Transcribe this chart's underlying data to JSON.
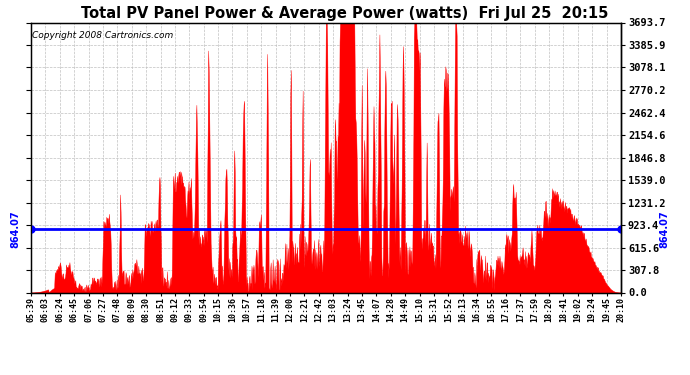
{
  "title": "Total PV Panel Power & Average Power (watts)  Fri Jul 25  20:15",
  "copyright_text": "Copyright 2008 Cartronics.com",
  "y_max": 3693.7,
  "y_min": 0.0,
  "y_ticks": [
    0.0,
    307.8,
    615.6,
    923.4,
    1231.2,
    1539.0,
    1846.8,
    2154.6,
    2462.4,
    2770.2,
    3078.1,
    3385.9,
    3693.7
  ],
  "average_power": 864.07,
  "avg_label": "864.07",
  "background_color": "#ffffff",
  "plot_bg_color": "#ffffff",
  "fill_color": "#ff0000",
  "line_color": "#ff0000",
  "avg_line_color": "#0000ff",
  "avg_dot_color": "#0000ff",
  "grid_color": "#c0c0c0",
  "x_labels": [
    "05:39",
    "06:03",
    "06:24",
    "06:45",
    "07:06",
    "07:27",
    "07:48",
    "08:09",
    "08:30",
    "08:51",
    "09:12",
    "09:33",
    "09:54",
    "10:15",
    "10:36",
    "10:57",
    "11:18",
    "11:39",
    "12:00",
    "12:21",
    "12:42",
    "13:03",
    "13:24",
    "13:45",
    "14:07",
    "14:28",
    "14:49",
    "15:10",
    "15:31",
    "15:52",
    "16:13",
    "16:34",
    "16:55",
    "17:16",
    "17:37",
    "17:59",
    "18:20",
    "18:41",
    "19:02",
    "19:24",
    "19:45",
    "20:10"
  ]
}
